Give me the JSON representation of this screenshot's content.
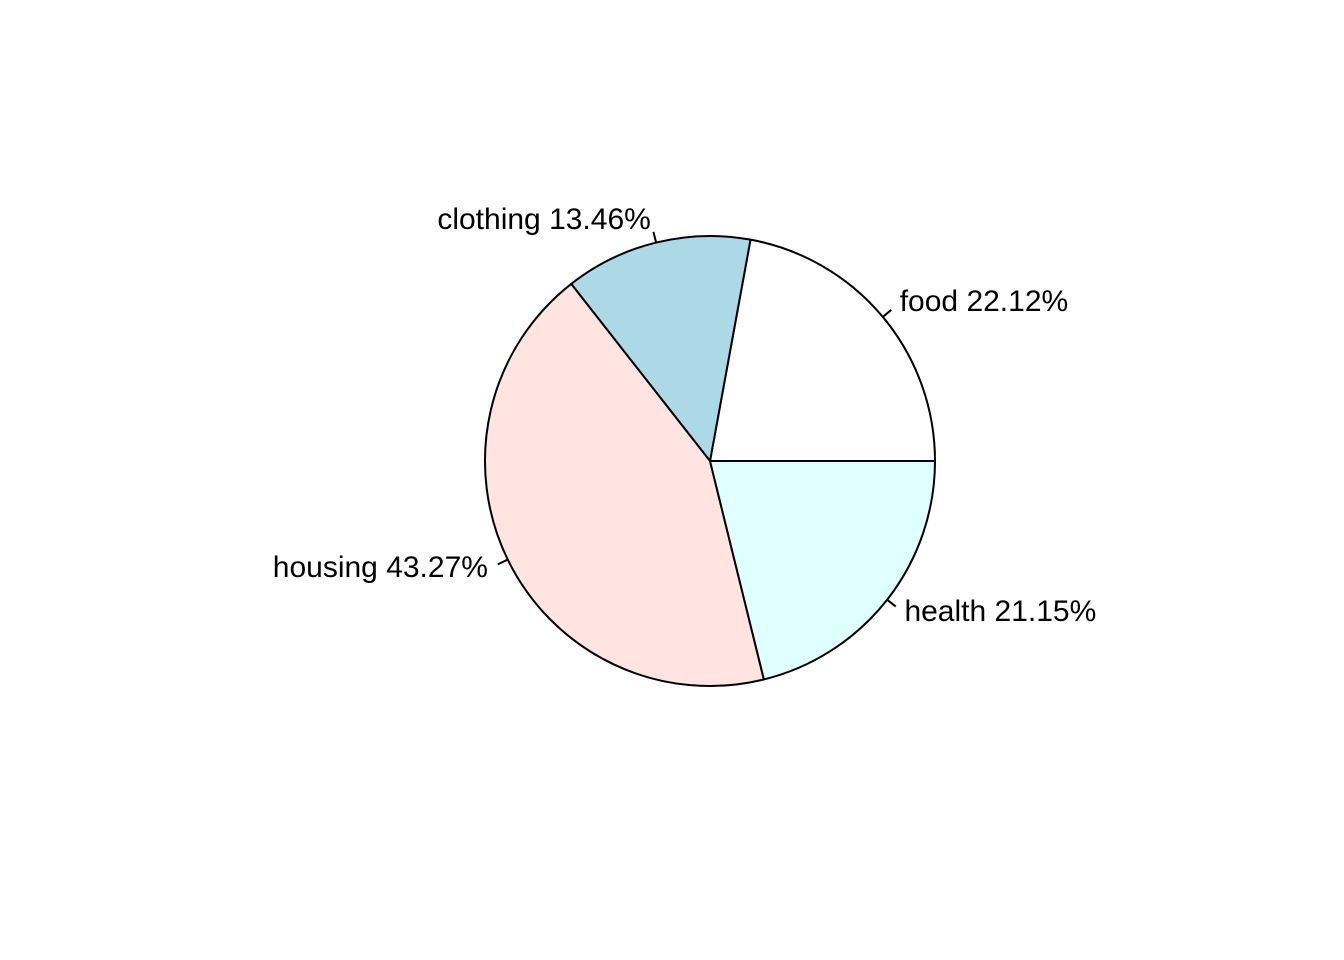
{
  "chart_data": {
    "type": "pie",
    "title": "",
    "start": "counterclockwise from 3 o'clock",
    "slices": [
      {
        "label": "food 22.12%",
        "category": "food",
        "value": 22.12,
        "color": "#ffffff"
      },
      {
        "label": "clothing 13.46%",
        "category": "clothing",
        "value": 13.46,
        "color": "#add8e6"
      },
      {
        "label": "housing 43.27%",
        "category": "housing",
        "value": 43.27,
        "color": "#ffe4e1"
      },
      {
        "label": "health 21.15%",
        "category": "health",
        "value": 21.15,
        "color": "#e0ffff"
      }
    ],
    "slice_border_color": "#000000"
  }
}
